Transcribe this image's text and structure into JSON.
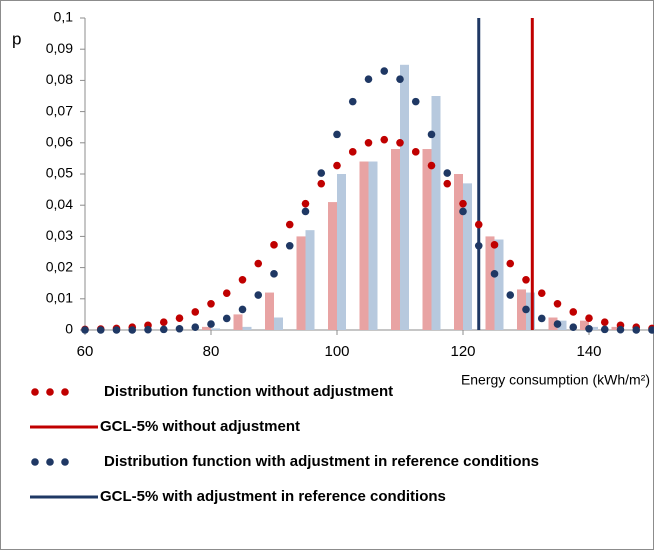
{
  "chart_data": {
    "type": "distribution",
    "y_label": "p",
    "x_label": "Energy consumption (kWh/m²)",
    "xlim": [
      60,
      150
    ],
    "ylim": [
      0,
      0.1
    ],
    "xticks": [
      60,
      80,
      100,
      120,
      140
    ],
    "yticks": [
      {
        "value": 0,
        "label": "0"
      },
      {
        "value": 0.01,
        "label": "0,01"
      },
      {
        "value": 0.02,
        "label": "0,02"
      },
      {
        "value": 0.03,
        "label": "0,03"
      },
      {
        "value": 0.04,
        "label": "0,04"
      },
      {
        "value": 0.05,
        "label": "0,05"
      },
      {
        "value": 0.06,
        "label": "0,06"
      },
      {
        "value": 0.07,
        "label": "0,07"
      },
      {
        "value": 0.08,
        "label": "0,08"
      },
      {
        "value": 0.09,
        "label": "0,09"
      },
      {
        "value": 0.1,
        "label": "0,1"
      }
    ],
    "bin_centers": [
      80,
      85,
      90,
      95,
      100,
      105,
      110,
      115,
      120,
      125,
      130,
      135,
      140,
      145
    ],
    "bars": [
      {
        "color": "#e8a3a3",
        "values": [
          0.001,
          0.005,
          0.012,
          0.03,
          0.041,
          0.054,
          0.058,
          0.058,
          0.05,
          0.03,
          0.013,
          0.004,
          0.003,
          0.001
        ]
      },
      {
        "color": "#b7c9de",
        "values": [
          0.0005,
          0.001,
          0.004,
          0.032,
          0.05,
          0.054,
          0.085,
          0.075,
          0.047,
          0.029,
          0.012,
          0.003,
          0.001,
          0
        ]
      }
    ],
    "x": [
      60,
      62.5,
      65,
      67.5,
      70,
      72.5,
      75,
      77.5,
      80,
      82.5,
      85,
      87.5,
      90,
      92.5,
      95,
      97.5,
      100,
      102.5,
      105,
      107.5,
      110,
      112.5,
      115,
      117.5,
      120,
      122.5,
      125,
      127.5,
      130,
      132.5,
      135,
      137.5,
      140,
      142.5,
      145,
      147.5,
      150
    ],
    "series": [
      {
        "name": "Distribution function without adjustment",
        "color": "#c00000",
        "values": [
          0.0002,
          0.0003,
          0.0005,
          0.0009,
          0.0015,
          0.0025,
          0.0038,
          0.0058,
          0.0084,
          0.0118,
          0.0161,
          0.0213,
          0.0273,
          0.0338,
          0.0405,
          0.0469,
          0.0527,
          0.0571,
          0.06,
          0.061,
          0.06,
          0.0571,
          0.0527,
          0.0469,
          0.0405,
          0.0338,
          0.0273,
          0.0213,
          0.0161,
          0.0118,
          0.0084,
          0.0058,
          0.0038,
          0.0025,
          0.0015,
          0.0009,
          0.0005
        ]
      },
      {
        "name": "Distribution function with adjustment in reference conditions",
        "color": "#1f3864",
        "values": [
          0,
          0,
          0,
          0,
          0.0001,
          0.0002,
          0.0004,
          0.0009,
          0.0019,
          0.0037,
          0.0066,
          0.0112,
          0.018,
          0.027,
          0.038,
          0.0503,
          0.0627,
          0.0732,
          0.0804,
          0.083,
          0.0804,
          0.0732,
          0.0627,
          0.0503,
          0.038,
          0.027,
          0.018,
          0.0112,
          0.0066,
          0.0037,
          0.0019,
          0.0009,
          0.0004,
          0.0002,
          0.0001,
          0,
          0
        ]
      }
    ],
    "lines": [
      {
        "name": "GCL-5% without adjustment",
        "color": "#c00000",
        "x": 131
      },
      {
        "name": "GCL-5% with adjustment in reference conditions",
        "color": "#1f3864",
        "x": 122.5
      }
    ]
  }
}
